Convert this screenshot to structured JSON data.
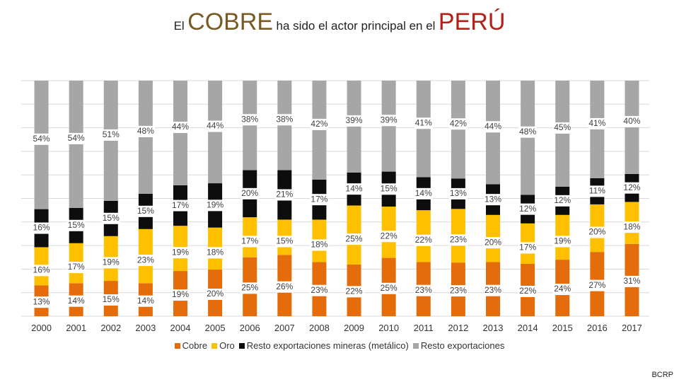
{
  "title": {
    "part1": "El",
    "part2": "COBRE",
    "part3": "ha sido el actor principal en el",
    "part4": "PERÚ"
  },
  "source": "BCRP",
  "colors": {
    "cobre": "#e46c0a",
    "oro": "#ffc000",
    "resto_mineras": "#0d0d0d",
    "resto_export": "#a6a6a6"
  },
  "chart_data": {
    "type": "bar",
    "stacked": true,
    "stack_mode": "percent",
    "title": "El COBRE ha sido el actor principal en el PERÚ",
    "xlabel": "",
    "ylabel": "",
    "ylim": [
      0,
      100
    ],
    "legend_position": "bottom",
    "gridlines": true,
    "categories": [
      "2000",
      "2001",
      "2002",
      "2003",
      "2004",
      "2005",
      "2006",
      "2007",
      "2008",
      "2009",
      "2010",
      "2011",
      "2012",
      "2013",
      "2014",
      "2015",
      "2016",
      "2017"
    ],
    "series": [
      {
        "name": "Cobre",
        "color": "#e46c0a",
        "values": [
          13,
          14,
          15,
          14,
          19,
          20,
          25,
          26,
          23,
          22,
          25,
          23,
          23,
          23,
          22,
          24,
          27,
          31
        ],
        "labels": [
          "13%",
          "14%",
          "15%",
          "14%",
          "19%",
          "20%",
          "25%",
          "26%",
          "23%",
          "22%",
          "25%",
          "23%",
          "23%",
          "23%",
          "22%",
          "24%",
          "27%",
          "31%"
        ]
      },
      {
        "name": "Oro",
        "color": "#ffc000",
        "values": [
          16,
          17,
          19,
          23,
          19,
          18,
          17,
          15,
          18,
          25,
          22,
          22,
          23,
          20,
          17,
          19,
          20,
          18
        ],
        "labels": [
          "16%",
          "17%",
          "19%",
          "23%",
          "19%",
          "18%",
          "17%",
          "15%",
          "18%",
          "25%",
          "22%",
          "22%",
          "23%",
          "20%",
          "17%",
          "19%",
          "20%",
          "18%"
        ]
      },
      {
        "name": "Resto exportaciones mineras (metálico)",
        "color": "#0d0d0d",
        "values": [
          16,
          15,
          15,
          15,
          17,
          19,
          20,
          21,
          17,
          14,
          15,
          14,
          13,
          13,
          12,
          12,
          11,
          12
        ],
        "labels": [
          "16%",
          "15%",
          "15%",
          "15%",
          "17%",
          "19%",
          "20%",
          "21%",
          "17%",
          "14%",
          "15%",
          "14%",
          "13%",
          "13%",
          "12%",
          "12%",
          "11%",
          "12%"
        ]
      },
      {
        "name": "Resto exportaciones",
        "color": "#a6a6a6",
        "values": [
          54,
          54,
          51,
          48,
          44,
          44,
          38,
          38,
          42,
          39,
          39,
          41,
          42,
          44,
          48,
          45,
          41,
          40
        ],
        "labels": [
          "54%",
          "54%",
          "51%",
          "48%",
          "44%",
          "44%",
          "38%",
          "38%",
          "42%",
          "39%",
          "39%",
          "41%",
          "42%",
          "44%",
          "48%",
          "45%",
          "41%",
          "40%"
        ]
      }
    ]
  }
}
